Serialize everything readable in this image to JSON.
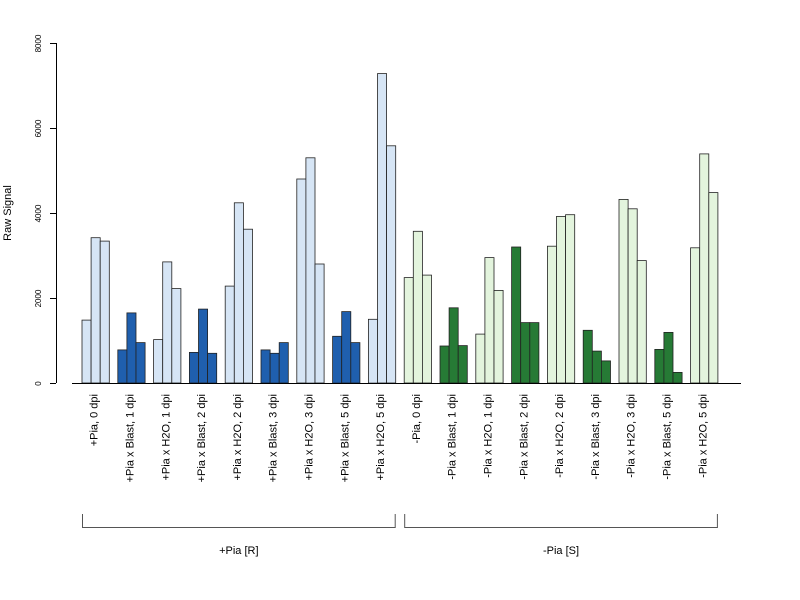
{
  "chart_data": {
    "type": "bar",
    "ylabel": "Raw Signal",
    "ylim": [
      0,
      8000
    ],
    "yticks": [
      "0",
      "2000",
      "4000",
      "6000",
      "8000"
    ],
    "categories": [
      {
        "label": "+Pia, 0 dpi",
        "values": [
          1480,
          3420,
          3340
        ],
        "color": "#d6e5f5"
      },
      {
        "label": "+Pia x Blast, 1 dpi",
        "values": [
          780,
          1650,
          950
        ],
        "color": "#1f5fae"
      },
      {
        "label": "+Pia x H2O, 1 dpi",
        "values": [
          1020,
          2850,
          2220
        ],
        "color": "#d6e5f5"
      },
      {
        "label": "+Pia x Blast, 2 dpi",
        "values": [
          720,
          1740,
          700
        ],
        "color": "#1f5fae"
      },
      {
        "label": "+Pia x H2O, 2 dpi",
        "values": [
          2280,
          4240,
          3620
        ],
        "color": "#d6e5f5"
      },
      {
        "label": "+Pia x Blast, 3 dpi",
        "values": [
          780,
          700,
          950
        ],
        "color": "#1f5fae"
      },
      {
        "label": "+Pia x H2O, 3 dpi",
        "values": [
          4800,
          5300,
          2800
        ],
        "color": "#d6e5f5"
      },
      {
        "label": "+Pia x Blast, 5 dpi",
        "values": [
          1100,
          1680,
          950
        ],
        "color": "#1f5fae"
      },
      {
        "label": "+Pia x H2O, 5 dpi",
        "values": [
          1500,
          7280,
          5580
        ],
        "color": "#d6e5f5"
      },
      {
        "label": "-Pia, 0 dpi",
        "values": [
          2480,
          3570,
          2540
        ],
        "color": "#e3f4dd"
      },
      {
        "label": "-Pia x Blast, 1 dpi",
        "values": [
          870,
          1770,
          880
        ],
        "color": "#267a35"
      },
      {
        "label": "-Pia x H2O, 1 dpi",
        "values": [
          1150,
          2950,
          2180
        ],
        "color": "#e3f4dd"
      },
      {
        "label": "-Pia x Blast, 2 dpi",
        "values": [
          3200,
          1420,
          1420
        ],
        "color": "#267a35"
      },
      {
        "label": "-Pia x H2O, 2 dpi",
        "values": [
          3220,
          3920,
          3960
        ],
        "color": "#e3f4dd"
      },
      {
        "label": "-Pia x Blast, 3 dpi",
        "values": [
          1240,
          750,
          520
        ],
        "color": "#267a35"
      },
      {
        "label": "-Pia x H2O, 3 dpi",
        "values": [
          4320,
          4100,
          2880
        ],
        "color": "#e3f4dd"
      },
      {
        "label": "-Pia x Blast, 5 dpi",
        "values": [
          790,
          1190,
          250
        ],
        "color": "#267a35"
      },
      {
        "label": "-Pia x H2O, 5 dpi",
        "values": [
          3180,
          5390,
          4480
        ],
        "color": "#e3f4dd"
      }
    ],
    "groups": [
      {
        "label": "+Pia [R]",
        "first": 0,
        "last": 8
      },
      {
        "label": "-Pia [S]",
        "first": 9,
        "last": 17
      }
    ],
    "legend": "none",
    "grid": false
  }
}
